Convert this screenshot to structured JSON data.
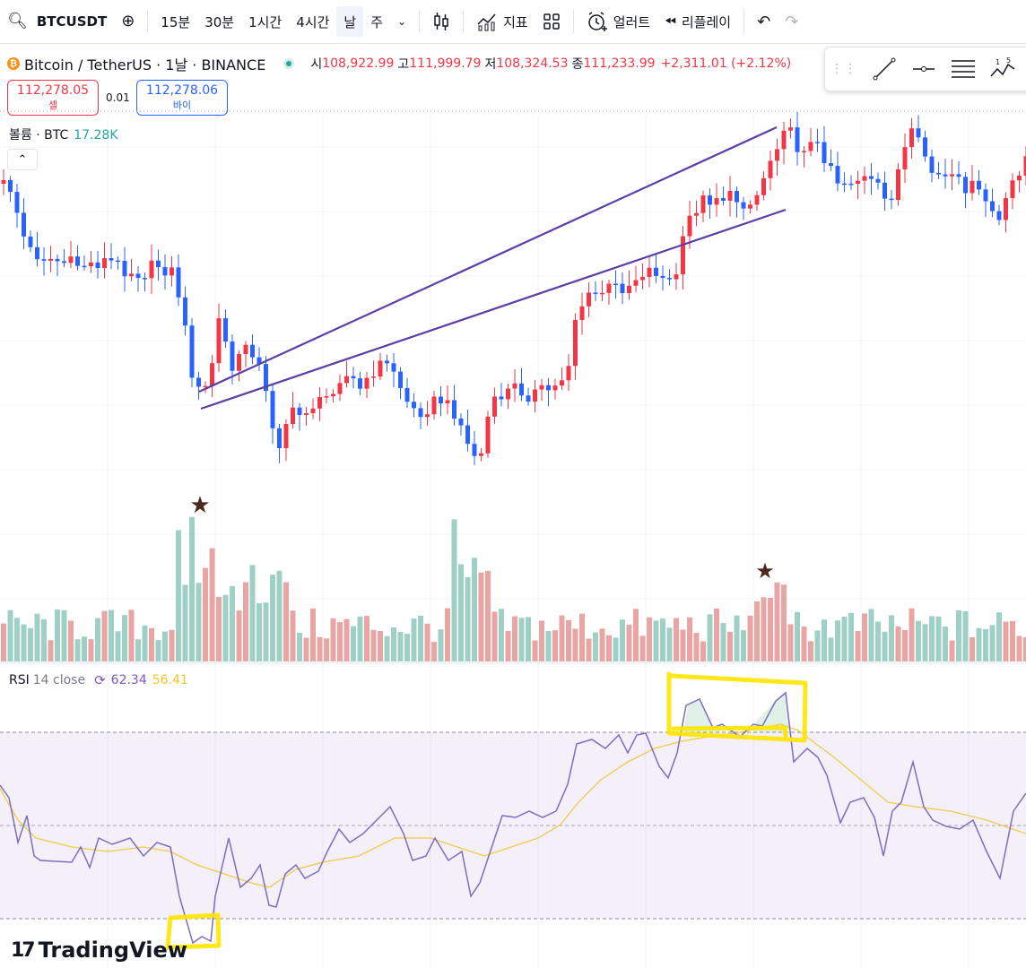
{
  "toolbar": {
    "symbol": "BTCUSDT",
    "intervals": [
      "15분",
      "30분",
      "1시간",
      "4시간",
      "날",
      "주"
    ],
    "active_interval": "날",
    "indicators_label": "지표",
    "alerts_label": "얼러트",
    "replay_label": "리플레이"
  },
  "legend": {
    "name": "Bitcoin / TetherUS · 1날 · BINANCE",
    "open_label": "시",
    "open": "108,922.99",
    "high_label": "고",
    "high": "111,999.79",
    "low_label": "저",
    "low": "108,324.53",
    "close_label": "종",
    "close": "111,233.99",
    "change": "+2,311.01 (+2.12%)"
  },
  "trade": {
    "sell_price": "112,278.05",
    "sell_label": "셀",
    "spread": "0.01",
    "buy_price": "112,278.06",
    "buy_label": "바이"
  },
  "volume": {
    "label": "볼륨 · BTC",
    "value": "17.28K"
  },
  "rsi": {
    "name": "RSI",
    "params": "14 close",
    "value": "62.34",
    "ma_value": "56.41"
  },
  "branding": {
    "logo_text": "TradingView"
  },
  "colors": {
    "up": "#f23645",
    "down": "#2962ff",
    "vol_up": "#e8a5a3",
    "vol_down": "#9fd0c6",
    "rsi_line": "#7e6dbe",
    "rsi_ma": "#f2c94c",
    "trendline": "#5b3fa6",
    "highlight": "#ffe600"
  }
}
